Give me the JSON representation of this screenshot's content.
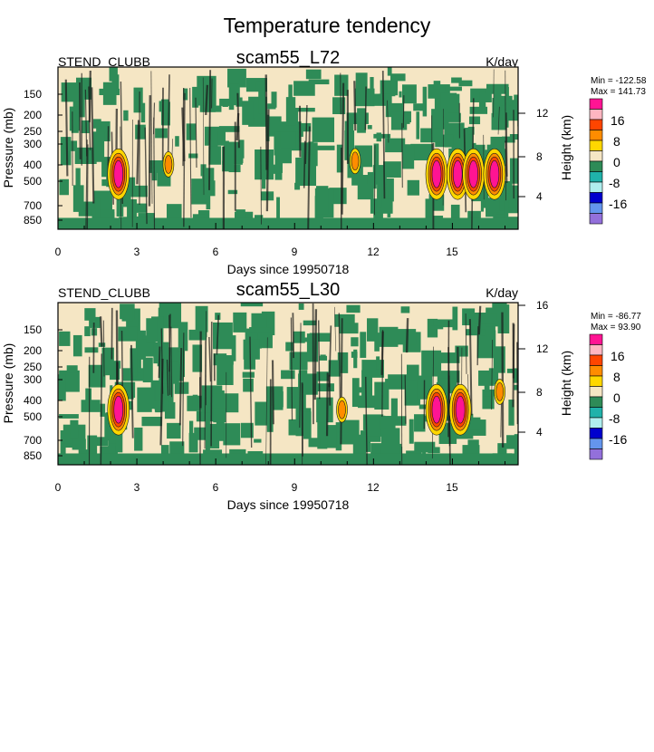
{
  "figure": {
    "title": "Temperature tendency"
  },
  "colors": {
    "bg": "#F5E6C4",
    "green": "#2E8B57",
    "dark": "#1a1a1a",
    "levels": [
      "#9370DB",
      "#6495ED",
      "#0000CD",
      "#AFEEEE",
      "#20B2AA",
      "#2E8B57",
      "#F5E6C4",
      "#FFD700",
      "#FF8C00",
      "#FF4500",
      "#FFB6C1",
      "#FF1493"
    ]
  },
  "chart_data": [
    {
      "type": "heatmap",
      "title": "scam55_L72",
      "left_label": "STEND_CLUBB",
      "units": "K/day",
      "ylabel": "Pressure (mb)",
      "y2label": "Height (km)",
      "xlabel": "Days since 19950718",
      "xlim": [
        0,
        17.5
      ],
      "x_ticks": [
        "0",
        "3",
        "6",
        "9",
        "12",
        "15"
      ],
      "y_ticks": [
        "150",
        "200",
        "250",
        "300",
        "400",
        "500",
        "700",
        "850"
      ],
      "y2_ticks": [
        "12",
        "8",
        "4"
      ],
      "stats": {
        "min": "Min = -122.58",
        "max": "Max = 141.73"
      },
      "colorbar_labels": [
        "16",
        "8",
        "0",
        "-8",
        "-16"
      ],
      "hot_spots": [
        {
          "day": 2.3,
          "p": 450,
          "level": "high"
        },
        {
          "day": 4.2,
          "p": 400,
          "level": "mid"
        },
        {
          "day": 11.3,
          "p": 380,
          "level": "mid"
        },
        {
          "day": 14.4,
          "p": 450,
          "level": "high"
        },
        {
          "day": 15.2,
          "p": 450,
          "level": "high"
        },
        {
          "day": 15.8,
          "p": 450,
          "level": "high"
        },
        {
          "day": 16.6,
          "p": 450,
          "level": "high"
        }
      ]
    },
    {
      "type": "heatmap",
      "title": "scam55_L30",
      "left_label": "STEND_CLUBB",
      "units": "K/day",
      "ylabel": "Pressure (mb)",
      "y2label": "Height (km)",
      "xlabel": "Days since 19950718",
      "xlim": [
        0,
        17.5
      ],
      "x_ticks": [
        "0",
        "3",
        "6",
        "9",
        "12",
        "15"
      ],
      "y_ticks": [
        "150",
        "200",
        "250",
        "300",
        "400",
        "500",
        "700",
        "850"
      ],
      "y2_ticks": [
        "16",
        "12",
        "8",
        "4"
      ],
      "stats": {
        "min": "Min = -86.77",
        "max": "Max =  93.90"
      },
      "colorbar_labels": [
        "16",
        "8",
        "0",
        "-8",
        "-16"
      ],
      "hot_spots": [
        {
          "day": 2.3,
          "p": 450,
          "level": "high"
        },
        {
          "day": 10.8,
          "p": 450,
          "level": "mid"
        },
        {
          "day": 14.4,
          "p": 450,
          "level": "high"
        },
        {
          "day": 15.3,
          "p": 450,
          "level": "high"
        },
        {
          "day": 16.8,
          "p": 350,
          "level": "mid"
        }
      ]
    }
  ]
}
